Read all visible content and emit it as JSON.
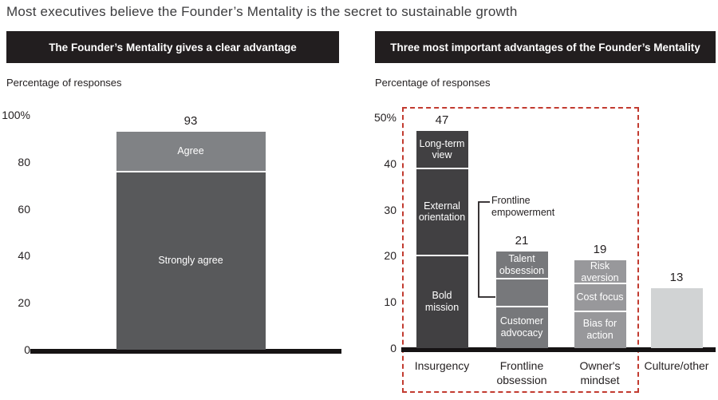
{
  "title": "Most executives believe the Founder’s Mentality is the secret to sustainable growth",
  "colors": {
    "header_bg": "#221e1f",
    "axis": "#161314",
    "text": "#231f20",
    "highlight_box": "#c23b30",
    "insurgency_segment": "#414042",
    "strongly_agree": "#58595b",
    "agree": "#808285",
    "frontline_segment": "#77787b",
    "owners_segment": "#98989b",
    "culture_bar": "#d1d3d4"
  },
  "chart_data": [
    {
      "type": "bar",
      "stacked": true,
      "title": "The Founder’s Mentality gives a clear advantage",
      "ylabel": "Percentage of responses",
      "ylim": [
        0,
        100
      ],
      "ytick_labels": [
        "100%",
        "80",
        "60",
        "40",
        "20",
        "0"
      ],
      "ytick_values": [
        100,
        80,
        60,
        40,
        20,
        0
      ],
      "grid": false,
      "bars": [
        {
          "category_lines": [],
          "total": 93,
          "total_label": "93",
          "segments": [
            {
              "name": "Strongly agree",
              "value": 76,
              "label_lines": [
                "Strongly agree"
              ],
              "color": "#58595b"
            },
            {
              "name": "Agree",
              "value": 17,
              "label_lines": [
                "Agree"
              ],
              "color": "#808285"
            }
          ]
        }
      ]
    },
    {
      "type": "bar",
      "stacked": true,
      "title": "Three most important advantages of the Founder’s Mentality",
      "ylabel": "Percentage of responses",
      "ylim": [
        0,
        50
      ],
      "ytick_labels": [
        "50%",
        "40",
        "30",
        "20",
        "10",
        "0"
      ],
      "ytick_values": [
        50,
        40,
        30,
        20,
        10,
        0
      ],
      "grid": false,
      "bars": [
        {
          "category_lines": [
            "Insurgency"
          ],
          "total": 47,
          "total_label": "47",
          "segments": [
            {
              "name": "Bold mission",
              "value": 20,
              "label_lines": [
                "Bold",
                "mission"
              ],
              "color": "#414042"
            },
            {
              "name": "External orientation",
              "value": 19,
              "label_lines": [
                "External",
                "orientation"
              ],
              "color": "#414042"
            },
            {
              "name": "Long-term view",
              "value": 8,
              "label_lines": [
                "Long-term",
                "view"
              ],
              "color": "#414042"
            }
          ]
        },
        {
          "category_lines": [
            "Frontline",
            "obsession"
          ],
          "total": 21,
          "total_label": "21",
          "segments": [
            {
              "name": "Customer advocacy",
              "value": 9,
              "label_lines": [
                "Customer",
                "advocacy"
              ],
              "color": "#77787b"
            },
            {
              "name": "Frontline empowerment",
              "value": 6,
              "label_lines": [],
              "color": "#77787b"
            },
            {
              "name": "Talent obsession",
              "value": 6,
              "label_lines": [
                "Talent",
                "obsession"
              ],
              "color": "#77787b"
            }
          ]
        },
        {
          "category_lines": [
            "Owner's",
            "mindset"
          ],
          "total": 19,
          "total_label": "19",
          "segments": [
            {
              "name": "Bias for action",
              "value": 8,
              "label_lines": [
                "Bias for",
                "action"
              ],
              "color": "#98989b"
            },
            {
              "name": "Cost focus",
              "value": 6,
              "label_lines": [
                "Cost focus"
              ],
              "color": "#98989b"
            },
            {
              "name": "Risk aversion",
              "value": 5,
              "label_lines": [
                "Risk",
                "aversion"
              ],
              "color": "#98989b"
            }
          ]
        },
        {
          "category_lines": [
            "Culture/other"
          ],
          "total": 13,
          "total_label": "13",
          "segments": [
            {
              "name": "Culture/other",
              "value": 13,
              "label_lines": [],
              "color": "#d1d3d4"
            }
          ]
        }
      ],
      "callout": {
        "label_lines": [
          "Frontline",
          "empowerment"
        ],
        "targets_segment": "Frontline empowerment"
      },
      "highlight_box": {
        "style": "dashed",
        "color": "#c23b30",
        "encloses": [
          "Insurgency",
          "Frontline obsession",
          "Owner's mindset"
        ]
      }
    }
  ]
}
